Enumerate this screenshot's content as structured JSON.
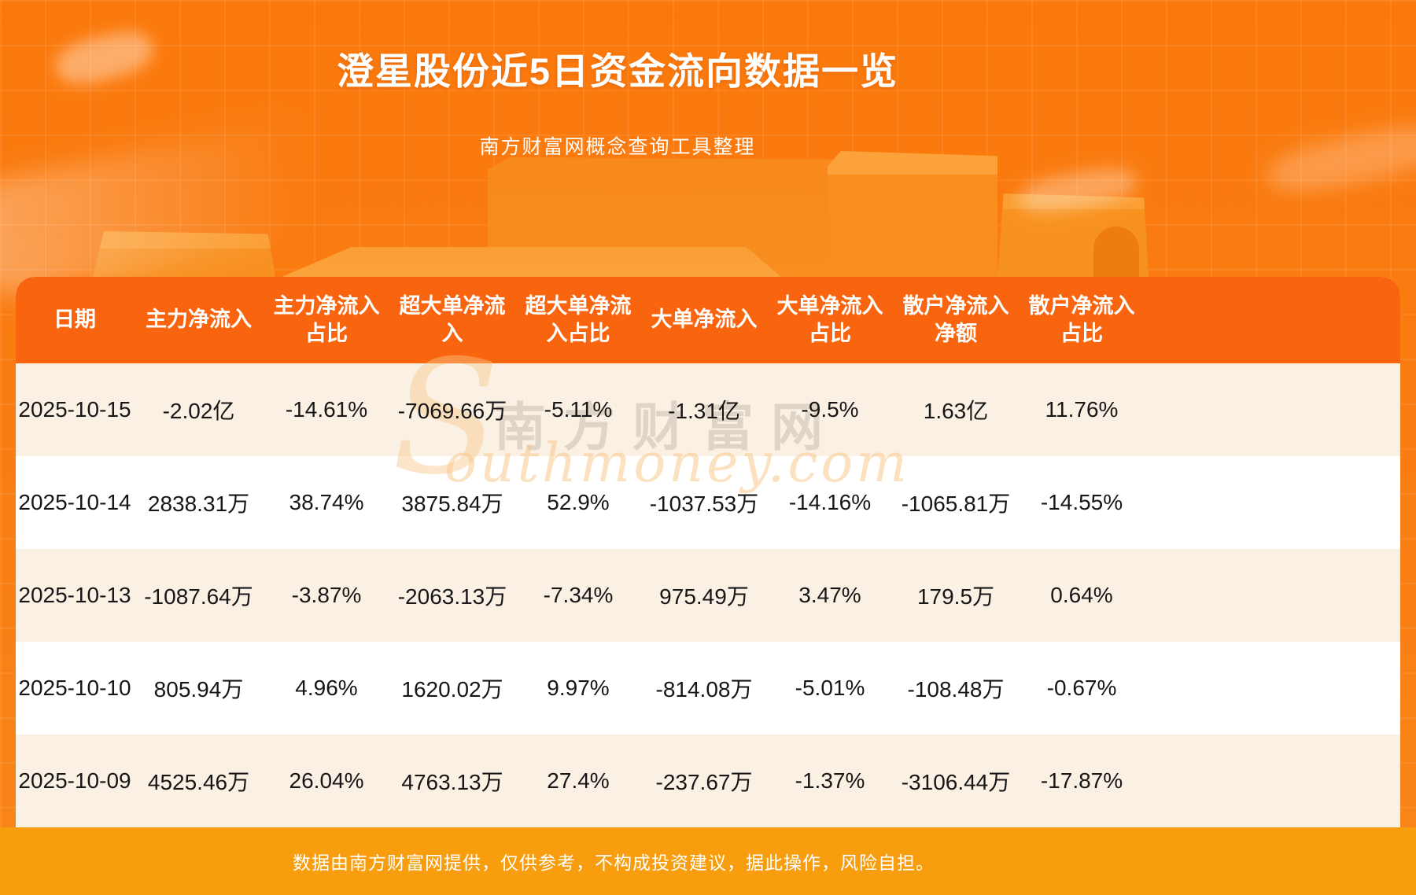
{
  "page": {
    "title": "澄星股份近5日资金流向数据一览",
    "subtitle": "南方财富网概念查询工具整理",
    "footer_note": "数据由南方财富网提供，仅供参考，不构成投资建议，据此操作，风险自担。",
    "watermark_s": "S",
    "watermark_cn": "南方财富网",
    "watermark_en": "outhmoney.com"
  },
  "colors": {
    "background_orange": "#f97c12",
    "header_band": "#f8650e",
    "row_odd": "#faf0e4",
    "row_even": "#ffffff",
    "footer_band": "#f89d0e",
    "text_dark": "#161616",
    "text_white": "#ffffff"
  },
  "chart_data": {
    "type": "table",
    "title": "澄星股份近5日资金流向数据一览",
    "columns": [
      "日期",
      "主力净流入",
      "主力净流入\n占比",
      "超大单净流\n入",
      "超大单净流\n入占比",
      "大单净流入",
      "大单净流入\n占比",
      "散户净流入\n净额",
      "散户净流入\n占比"
    ],
    "rows": [
      [
        "2025-10-15",
        "-2.02亿",
        "-14.61%",
        "-7069.66万",
        "-5.11%",
        "-1.31亿",
        "-9.5%",
        "1.63亿",
        "11.76%"
      ],
      [
        "2025-10-14",
        "2838.31万",
        "38.74%",
        "3875.84万",
        "52.9%",
        "-1037.53万",
        "-14.16%",
        "-1065.81万",
        "-14.55%"
      ],
      [
        "2025-10-13",
        "-1087.64万",
        "-3.87%",
        "-2063.13万",
        "-7.34%",
        "975.49万",
        "3.47%",
        "179.5万",
        "0.64%"
      ],
      [
        "2025-10-10",
        "805.94万",
        "4.96%",
        "1620.02万",
        "9.97%",
        "-814.08万",
        "-5.01%",
        "-108.48万",
        "-0.67%"
      ],
      [
        "2025-10-09",
        "4525.46万",
        "26.04%",
        "4763.13万",
        "27.4%",
        "-237.67万",
        "-1.37%",
        "-3106.44万",
        "-17.87%"
      ]
    ]
  }
}
